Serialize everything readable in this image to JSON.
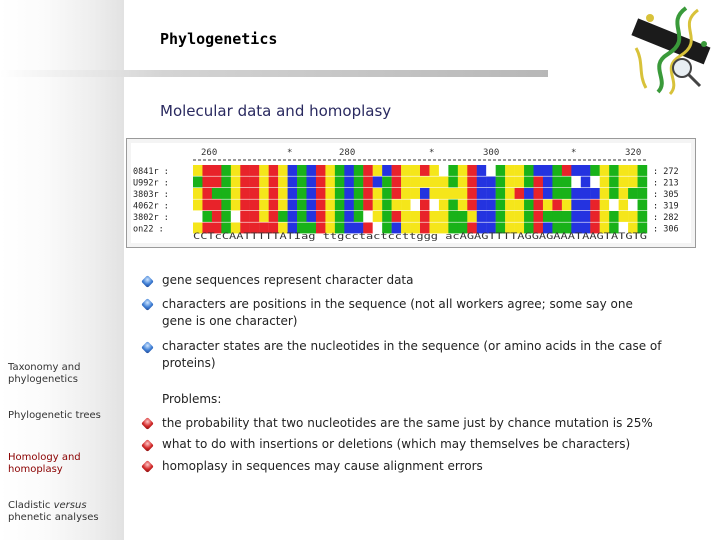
{
  "slide": {
    "title": "Phylogenetics",
    "subtitle": "Molecular data and homoplasy"
  },
  "sidebar": {
    "items": [
      {
        "label": "Taxonomy and phylogenetics"
      },
      {
        "label": "Phylogenetic trees"
      },
      {
        "label": "Homology and homoplasy"
      },
      {
        "label_pre": "Cladistic ",
        "label_em": "versus",
        "label_post": " phenetic analyses"
      }
    ]
  },
  "alignment": {
    "ruler": {
      "left": "260",
      "mid": "280",
      "right": "300",
      "far": "320",
      "star": "*"
    },
    "rows": [
      {
        "name": "0841r",
        "end": "272"
      },
      {
        "name": "U992r",
        "end": "213"
      },
      {
        "name": "3803r",
        "end": "305"
      },
      {
        "name": "4062r",
        "end": "319"
      },
      {
        "name": "3802r",
        "end": "282"
      },
      {
        "name": "on22",
        "end": "306"
      }
    ],
    "consensus": "CCTcCAATTTTTATIag ttgcctactccttggg acAGAGTTTTAGGAGAAATAAGTATGTG"
  },
  "bullets": [
    {
      "text": "gene sequences represent character data",
      "color": "blue"
    },
    {
      "text": "characters are positions in the sequence (not all workers agree; some say one gene is one character)",
      "color": "blue"
    },
    {
      "text": "character states are the nucleotides in the sequence (or amino acids in the case of proteins)",
      "color": "blue"
    }
  ],
  "problems_label": "Problems:",
  "problems": [
    {
      "text": "the probability that two nucleotides are the same just by chance mutation is 25%",
      "color": "red"
    },
    {
      "text": "what to do with insertions or deletions (which may themselves be characters)",
      "color": "red"
    },
    {
      "text": "homoplasy in sequences may cause alignment errors",
      "color": "red"
    }
  ],
  "colors": {
    "accent_red": "#8a0000",
    "bullet_blue": "#3f7fd6",
    "bullet_red": "#d42a2a"
  }
}
